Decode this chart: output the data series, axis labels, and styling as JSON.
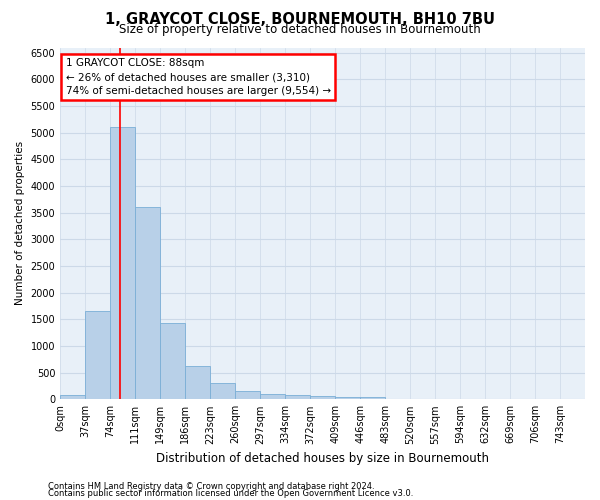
{
  "title": "1, GRAYCOT CLOSE, BOURNEMOUTH, BH10 7BU",
  "subtitle": "Size of property relative to detached houses in Bournemouth",
  "xlabel": "Distribution of detached houses by size in Bournemouth",
  "ylabel": "Number of detached properties",
  "footer_line1": "Contains HM Land Registry data © Crown copyright and database right 2024.",
  "footer_line2": "Contains public sector information licensed under the Open Government Licence v3.0.",
  "bar_labels": [
    "0sqm",
    "37sqm",
    "74sqm",
    "111sqm",
    "149sqm",
    "186sqm",
    "223sqm",
    "260sqm",
    "297sqm",
    "334sqm",
    "372sqm",
    "409sqm",
    "446sqm",
    "483sqm",
    "520sqm",
    "557sqm",
    "594sqm",
    "632sqm",
    "669sqm",
    "706sqm",
    "743sqm"
  ],
  "bar_values": [
    75,
    1650,
    5100,
    3600,
    1430,
    620,
    300,
    150,
    100,
    75,
    55,
    50,
    50,
    0,
    0,
    0,
    0,
    0,
    0,
    0,
    0
  ],
  "bar_color": "#b8d0e8",
  "bar_edge_color": "#7aaed6",
  "ylim": [
    0,
    6600
  ],
  "yticks": [
    0,
    500,
    1000,
    1500,
    2000,
    2500,
    3000,
    3500,
    4000,
    4500,
    5000,
    5500,
    6000,
    6500
  ],
  "red_line_x": 88,
  "annotation_text": "1 GRAYCOT CLOSE: 88sqm\n← 26% of detached houses are smaller (3,310)\n74% of semi-detached houses are larger (9,554) →",
  "annotation_box_facecolor": "white",
  "annotation_box_edgecolor": "red",
  "grid_color": "#ccd9e8",
  "background_color": "#e8f0f8",
  "bin_width": 37,
  "title_fontsize": 10.5,
  "subtitle_fontsize": 8.5,
  "xlabel_fontsize": 8.5,
  "ylabel_fontsize": 7.5,
  "tick_fontsize": 7,
  "annotation_fontsize": 7.5,
  "footer_fontsize": 6
}
